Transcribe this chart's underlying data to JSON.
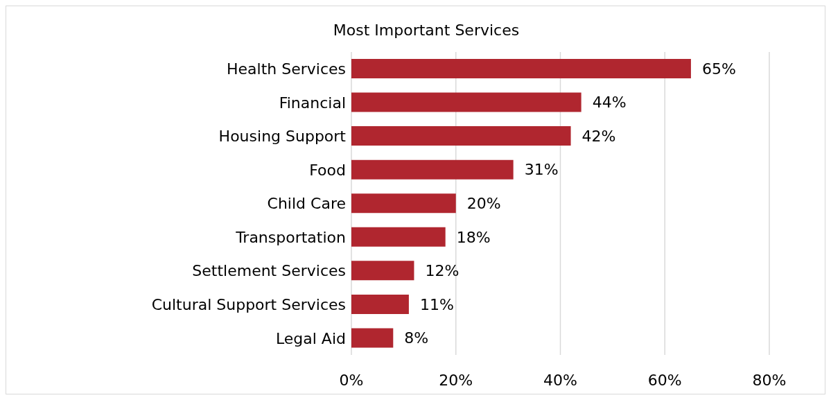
{
  "chart_data": {
    "type": "bar",
    "orientation": "horizontal",
    "title": "Most Important Services",
    "categories": [
      "Health Services",
      "Financial",
      "Housing Support",
      "Food",
      "Child Care",
      "Transportation",
      "Settlement Services",
      "Cultural Support Services",
      "Legal Aid"
    ],
    "values": [
      65,
      44,
      42,
      31,
      20,
      18,
      12,
      11,
      8
    ],
    "value_labels": [
      "65%",
      "44%",
      "42%",
      "31%",
      "20%",
      "18%",
      "12%",
      "11%",
      "8%"
    ],
    "color": "#b0262f",
    "xlim": [
      0,
      80
    ],
    "xticks": [
      {
        "value": 0,
        "label": "0%"
      },
      {
        "value": 20,
        "label": "20%"
      },
      {
        "value": 40,
        "label": "40%"
      },
      {
        "value": 60,
        "label": "60%"
      },
      {
        "value": 80,
        "label": "80%"
      }
    ],
    "grid": "x"
  }
}
